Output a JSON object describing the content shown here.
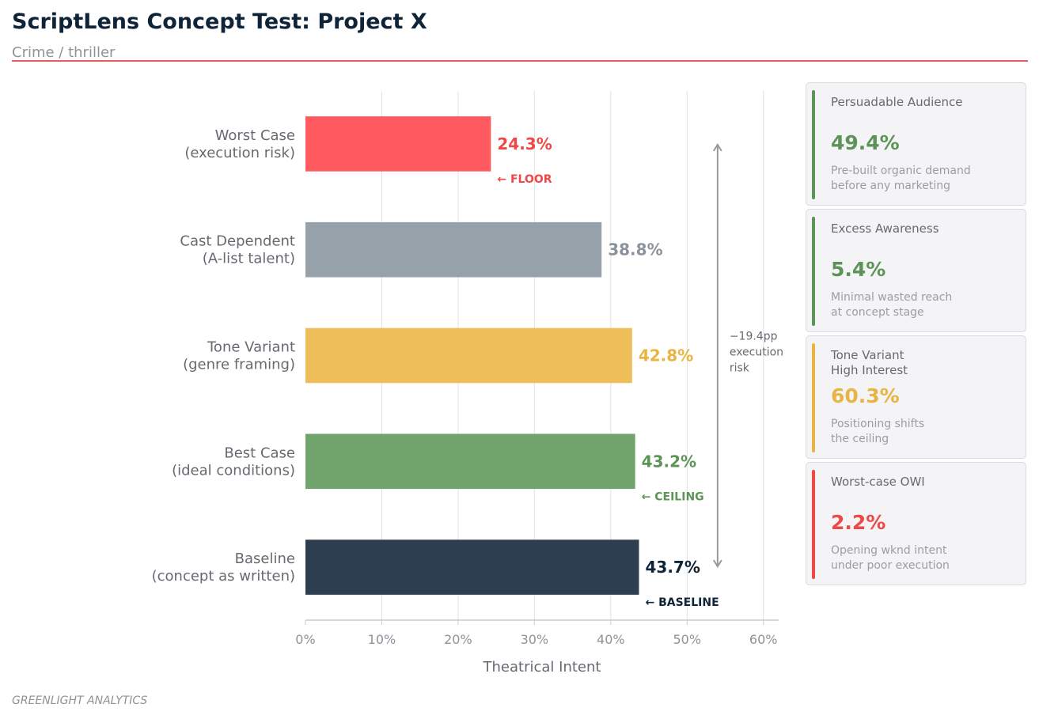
{
  "header": {
    "title": "ScriptLens Concept Test: Project X",
    "subtitle": "Crime / thriller"
  },
  "chart_data": {
    "type": "bar",
    "orientation": "horizontal",
    "categories": [
      "Worst Case\n(execution risk)",
      "Cast Dependent\n(A-list talent)",
      "Tone Variant\n(genre framing)",
      "Best Case\n(ideal conditions)",
      "Baseline\n(concept as written)"
    ],
    "values": [
      24.3,
      38.8,
      42.8,
      43.2,
      43.7
    ],
    "value_labels": [
      "24.3%",
      "38.8%",
      "42.8%",
      "43.2%",
      "43.7%"
    ],
    "bar_colors": [
      "#ff5a5f",
      "#97a1aa",
      "#eebe5a",
      "#71a46d",
      "#2d3e50"
    ],
    "label_colors": [
      "#f04747",
      "#8a939c",
      "#e8b442",
      "#5c9457",
      "#0f2438"
    ],
    "annotations": [
      {
        "bar": 0,
        "text": "← FLOOR",
        "color": "#f04747"
      },
      {
        "bar": 3,
        "text": "← CEILING",
        "color": "#5c9457"
      },
      {
        "bar": 4,
        "text": "← BASELINE",
        "color": "#0f2438"
      }
    ],
    "range_annotation": {
      "from": 0,
      "to": 4,
      "at_x": 54,
      "lines": [
        "−19.4pp",
        "execution",
        "risk"
      ]
    },
    "xlabel": "Theatrical Intent",
    "xlim": [
      0,
      62
    ],
    "xticks": [
      0,
      10,
      20,
      30,
      40,
      50,
      60
    ],
    "xtick_labels": [
      "0%",
      "10%",
      "20%",
      "30%",
      "40%",
      "50%",
      "60%"
    ],
    "grid": "vertical"
  },
  "cards": [
    {
      "label": "Persuadable Audience",
      "value": "49.4%",
      "desc": "Pre-built organic demand\nbefore any marketing",
      "color": "#5c9457"
    },
    {
      "label": "Excess Awareness",
      "value": "5.4%",
      "desc": "Minimal wasted reach\nat concept stage",
      "color": "#5c9457"
    },
    {
      "label": "Tone Variant\nHigh Interest",
      "value": "60.3%",
      "desc": "Positioning shifts\nthe ceiling",
      "color": "#e8b442"
    },
    {
      "label": "Worst-case OWI",
      "value": "2.2%",
      "desc": "Opening wknd intent\nunder poor execution",
      "color": "#f04747"
    }
  ],
  "footer": {
    "text": "GREENLIGHT ANALYTICS"
  }
}
